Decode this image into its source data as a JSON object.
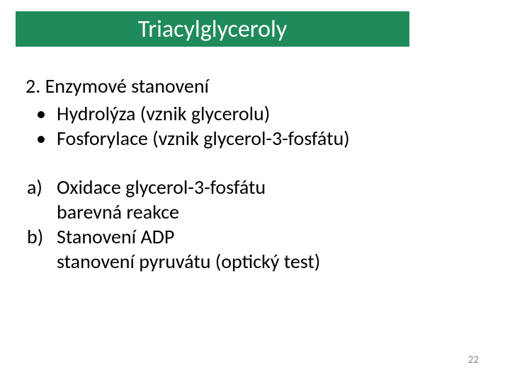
{
  "title": {
    "text": "Triacylglyceroly",
    "background_color": "#1f8a5a",
    "text_color": "#ffffff"
  },
  "heading": {
    "text": "2. Enzymové stanovení",
    "color": "#000000"
  },
  "bullets": [
    {
      "marker": "•",
      "text": "Hydrolýza (vznik glycerolu)"
    },
    {
      "marker": "•",
      "text": "Fosforylace (vznik glycerol-3-fosfátu)"
    }
  ],
  "letters": [
    {
      "marker": "a)",
      "line1": "Oxidace glycerol-3-fosfátu",
      "line2": "barevná reakce"
    },
    {
      "marker": "b)",
      "line1": "Stanovení ADP",
      "line2": "stanovení pyruvátu (optický test)"
    }
  ],
  "page_number": {
    "text": "22",
    "color": "#8b8b8b"
  },
  "body_text_color": "#000000"
}
